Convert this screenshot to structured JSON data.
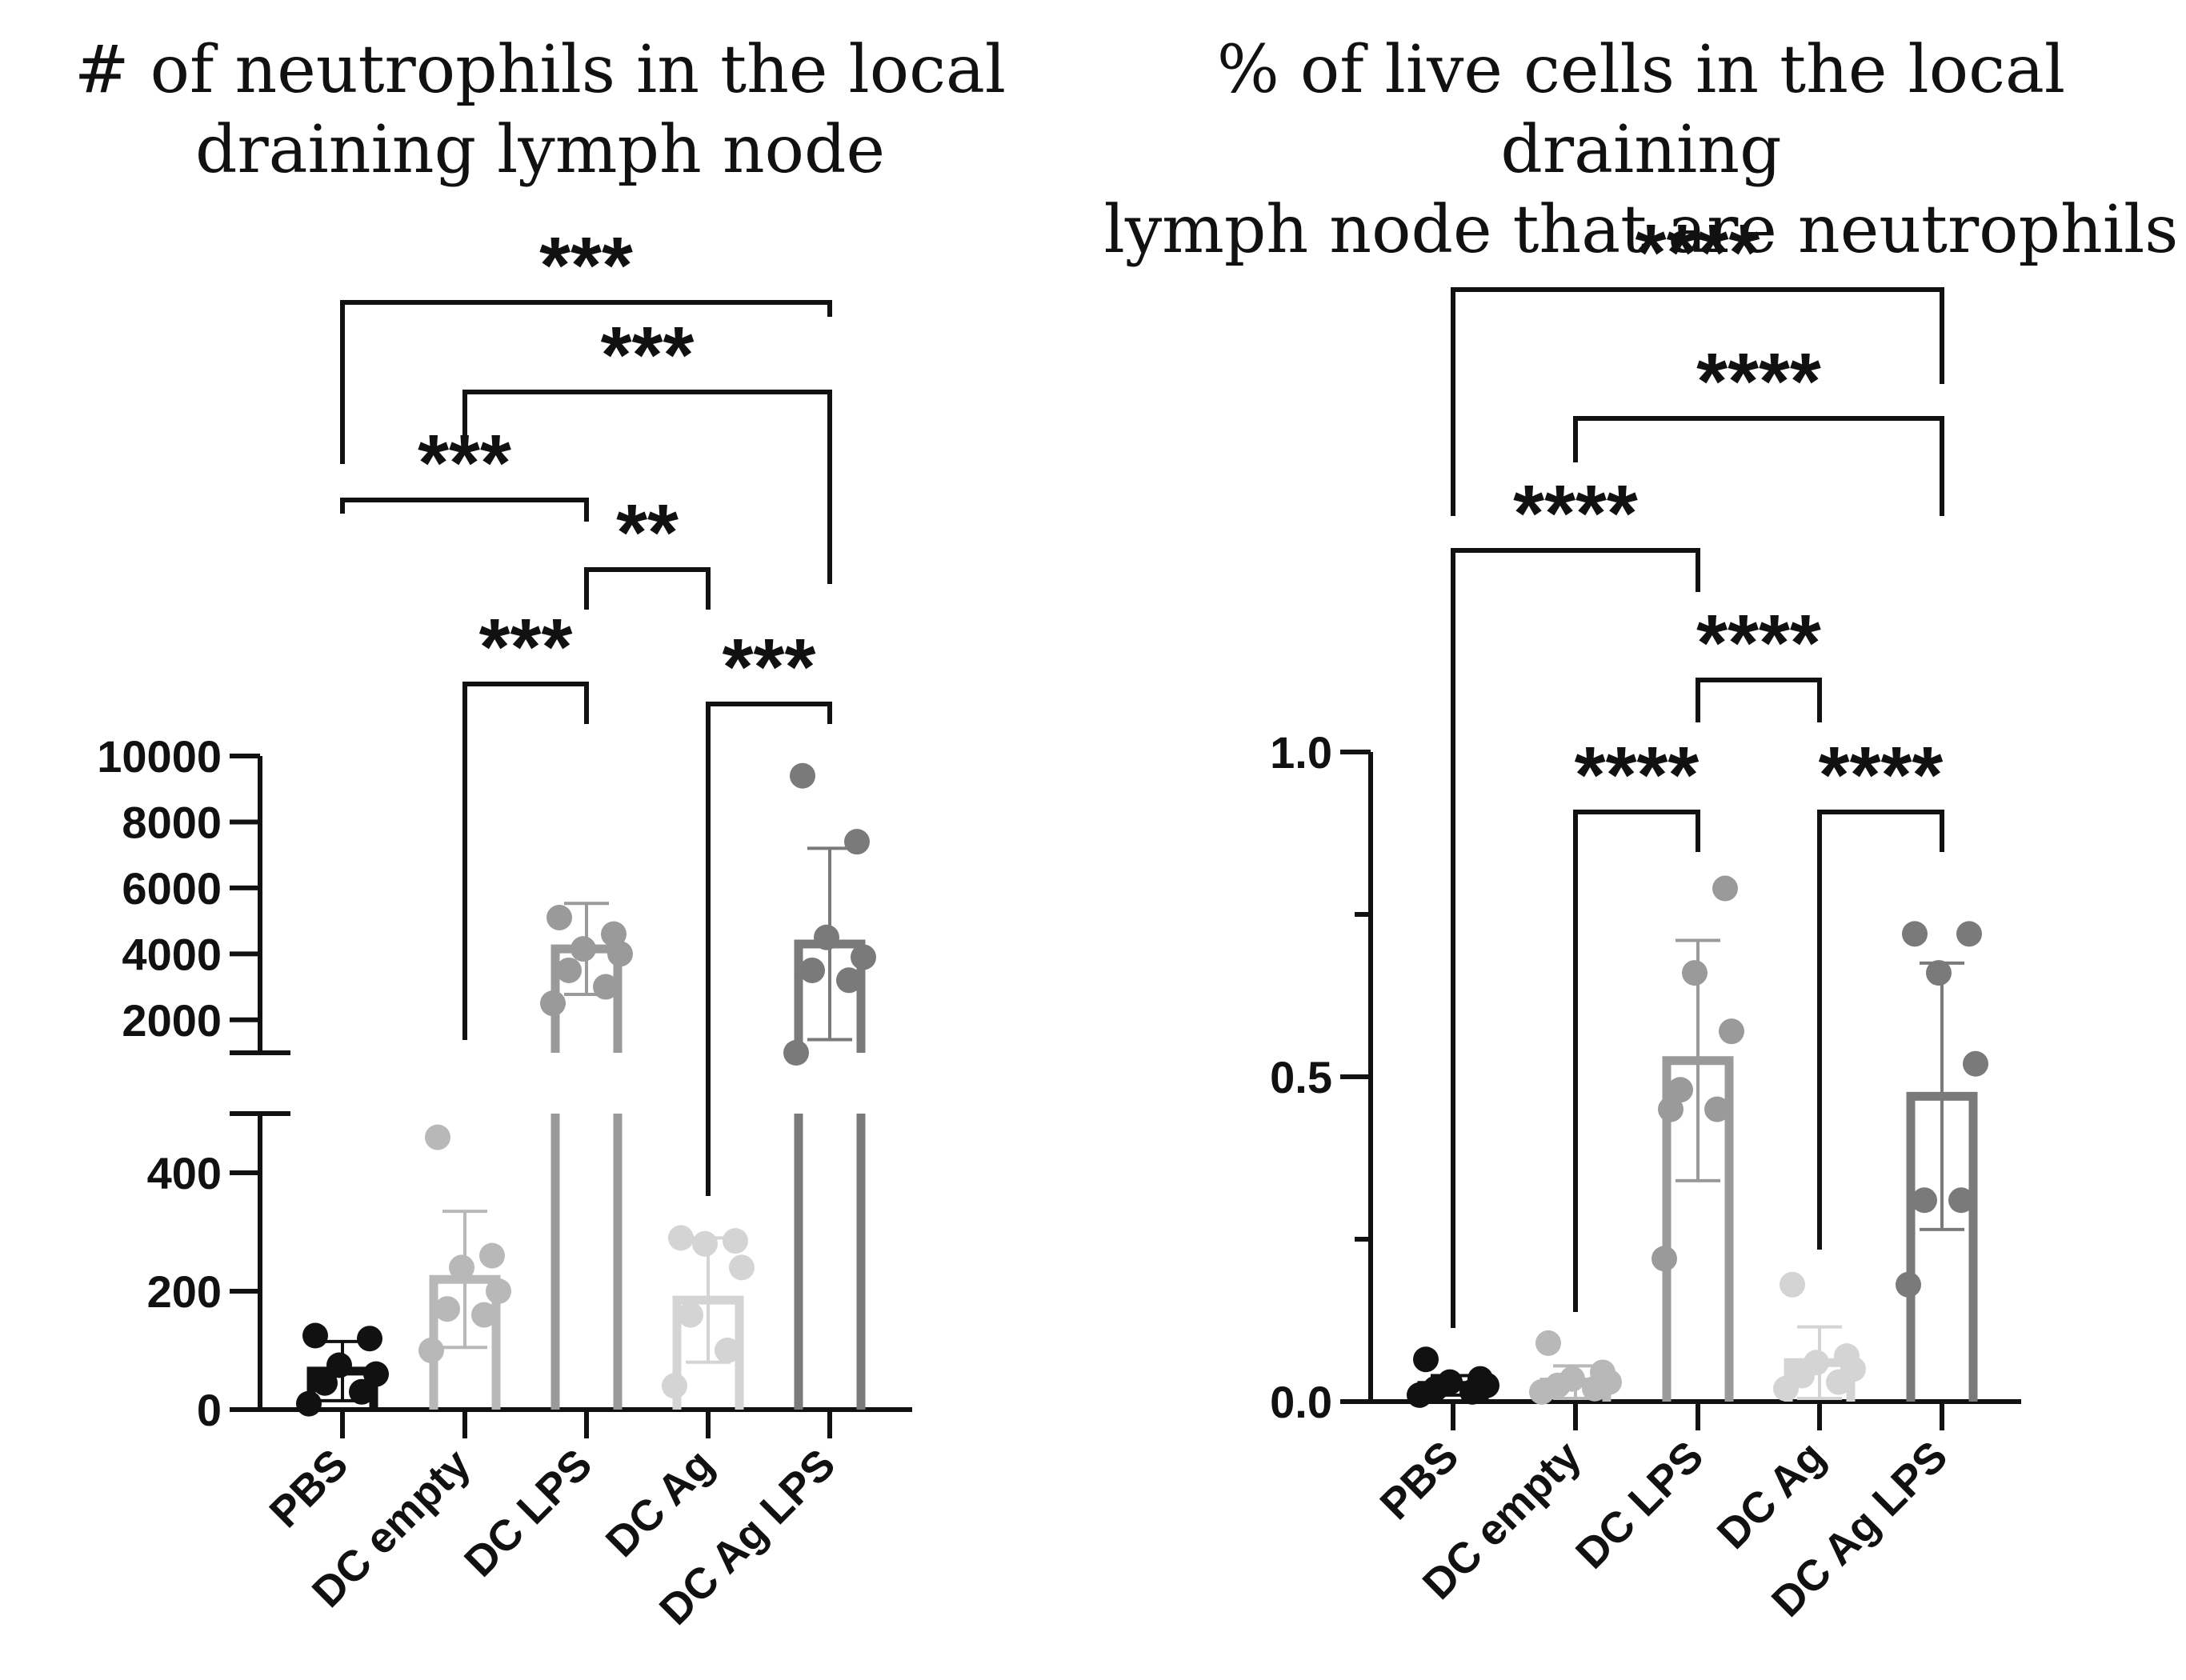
{
  "chart_data": [
    {
      "type": "bar",
      "title": [
        "# of neutrophils in the local",
        "draining lymph node"
      ],
      "xlabel": "",
      "ylabel": "",
      "axis_break": true,
      "ylim_lower": [
        0,
        500
      ],
      "ylim_upper": [
        1000,
        10000
      ],
      "yticks_lower": [
        0,
        200,
        400
      ],
      "yticks_upper": [
        2000,
        4000,
        6000,
        8000,
        10000
      ],
      "categories": [
        "PBS",
        "DC empty",
        "DC LPS",
        "DC Ag",
        "DC Ag LPS"
      ],
      "colors": [
        "#111111",
        "#b8b8b8",
        "#9a9a9a",
        "#d4d4d4",
        "#7a7a7a"
      ],
      "means": [
        65,
        220,
        4150,
        185,
        4300
      ],
      "sd": [
        50,
        115,
        1380,
        105,
        2900
      ],
      "points": [
        [
          10,
          30,
          45,
          60,
          75,
          120,
          125
        ],
        [
          100,
          160,
          170,
          200,
          240,
          260,
          460
        ],
        [
          2500,
          3000,
          3500,
          4000,
          4150,
          4600,
          5100
        ],
        [
          40,
          100,
          160,
          240,
          280,
          285,
          290
        ],
        [
          1000,
          3200,
          3500,
          3900,
          4500,
          7400,
          9400
        ]
      ],
      "comparisons": [
        {
          "pair": [
            "PBS",
            "DC Ag LPS"
          ],
          "label": "***"
        },
        {
          "pair": [
            "DC empty",
            "DC Ag LPS"
          ],
          "label": "***"
        },
        {
          "pair": [
            "PBS",
            "DC LPS"
          ],
          "label": "***"
        },
        {
          "pair": [
            "DC LPS",
            "DC Ag"
          ],
          "label": "**"
        },
        {
          "pair": [
            "DC empty",
            "DC LPS"
          ],
          "label": "***"
        },
        {
          "pair": [
            "DC Ag",
            "DC Ag LPS"
          ],
          "label": "***"
        }
      ]
    },
    {
      "type": "bar",
      "title": [
        "% of live cells in the local draining",
        "lymph node that are neutrophils"
      ],
      "xlabel": "",
      "ylabel": "",
      "ylim": [
        0,
        1.0
      ],
      "yticks": [
        "0.0",
        "0.5",
        "1.0"
      ],
      "categories": [
        "PBS",
        "DC empty",
        "DC LPS",
        "DC Ag",
        "DC Ag LPS"
      ],
      "colors": [
        "#111111",
        "#b8b8b8",
        "#9a9a9a",
        "#d4d4d4",
        "#7a7a7a"
      ],
      "means": [
        0.025,
        0.03,
        0.525,
        0.06,
        0.47
      ],
      "sd": [
        0.015,
        0.025,
        0.185,
        0.055,
        0.205
      ],
      "points": [
        [
          0.01,
          0.015,
          0.02,
          0.025,
          0.03,
          0.035,
          0.065
        ],
        [
          0.015,
          0.02,
          0.025,
          0.03,
          0.035,
          0.045,
          0.09
        ],
        [
          0.22,
          0.45,
          0.48,
          0.57,
          0.66,
          0.79,
          0.45
        ],
        [
          0.02,
          0.03,
          0.04,
          0.05,
          0.06,
          0.07,
          0.18
        ],
        [
          0.18,
          0.31,
          0.31,
          0.52,
          0.66,
          0.72,
          0.72
        ]
      ],
      "comparisons": [
        {
          "pair": [
            "PBS",
            "DC Ag LPS"
          ],
          "label": "****"
        },
        {
          "pair": [
            "DC empty",
            "DC Ag LPS"
          ],
          "label": "****"
        },
        {
          "pair": [
            "PBS",
            "DC LPS"
          ],
          "label": "****"
        },
        {
          "pair": [
            "DC LPS",
            "DC Ag"
          ],
          "label": "****"
        },
        {
          "pair": [
            "DC empty",
            "DC LPS"
          ],
          "label": "****"
        },
        {
          "pair": [
            "DC Ag",
            "DC Ag LPS"
          ],
          "label": "****"
        }
      ]
    }
  ]
}
